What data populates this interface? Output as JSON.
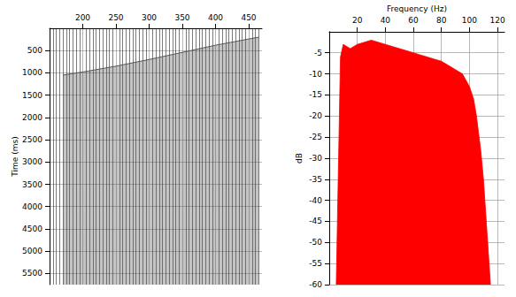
{
  "chart_data": [
    {
      "type": "line",
      "ylabel": "Time (ms)",
      "x": [
        170,
        200,
        250,
        300,
        350,
        400,
        450,
        465
      ],
      "values": [
        1050,
        980,
        850,
        700,
        540,
        380,
        240,
        200
      ],
      "color": "#555555",
      "xlim": [
        150,
        470
      ],
      "xticks": [
        200,
        250,
        300,
        350,
        400,
        450
      ],
      "ylim": [
        0,
        5750
      ],
      "yticks": [
        500,
        1000,
        1500,
        2000,
        2500,
        3000,
        3500,
        4000,
        4500,
        5000,
        5500
      ],
      "grid": true
    },
    {
      "type": "area",
      "xlabel": "Frequency (Hz)",
      "ylabel": "dB",
      "x": [
        5,
        8,
        10,
        15,
        20,
        25,
        30,
        35,
        40,
        45,
        50,
        55,
        60,
        65,
        70,
        75,
        80,
        85,
        90,
        95,
        100,
        103,
        105,
        108,
        110,
        112,
        115
      ],
      "values": [
        -60,
        -6,
        -3,
        -4,
        -3,
        -2.5,
        -2,
        -2.5,
        -3,
        -3.5,
        -4,
        -4.5,
        -5,
        -5.5,
        -6,
        -6.5,
        -7,
        -8,
        -9,
        -10,
        -13,
        -16,
        -20,
        -28,
        -35,
        -45,
        -60
      ],
      "color": "#ff0000",
      "xlim": [
        0,
        125
      ],
      "xticks": [
        20,
        40,
        60,
        80,
        100,
        120
      ],
      "ylim": [
        -60,
        0
      ],
      "yticks": [
        -60,
        -55,
        -50,
        -45,
        -40,
        -35,
        -30,
        -25,
        -20,
        -15,
        -10,
        -5
      ],
      "grid": true
    }
  ]
}
